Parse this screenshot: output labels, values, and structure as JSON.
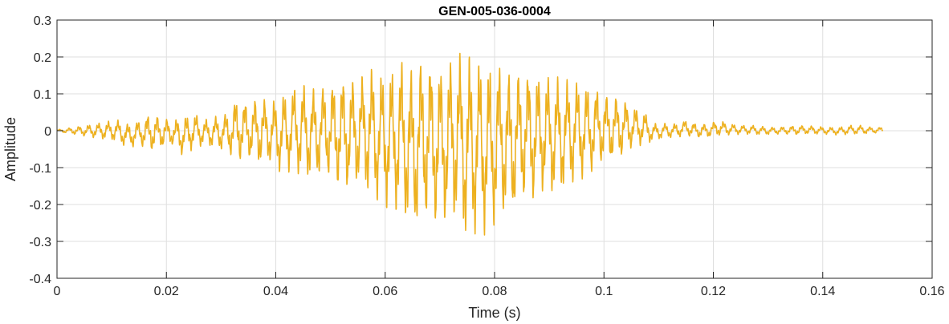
{
  "chart_data": {
    "type": "line",
    "title": "GEN-005-036-0004",
    "xlabel": "Time (s)",
    "ylabel": "Amplitude",
    "xlim": [
      0,
      0.16
    ],
    "ylim": [
      -0.4,
      0.3
    ],
    "xticks": [
      0,
      0.02,
      0.04,
      0.06,
      0.08,
      0.1,
      0.12,
      0.14,
      0.16
    ],
    "xtick_labels": [
      "0",
      "0.02",
      "0.04",
      "0.06",
      "0.08",
      "0.1",
      "0.12",
      "0.14",
      "0.16"
    ],
    "yticks": [
      -0.4,
      -0.3,
      -0.2,
      -0.1,
      0,
      0.1,
      0.2,
      0.3
    ],
    "ytick_labels": [
      "-0.4",
      "-0.3",
      "-0.2",
      "-0.1",
      "0",
      "0.1",
      "0.2",
      "0.3"
    ],
    "grid": true,
    "series": [
      {
        "color": "#EDB120",
        "x": [
          0,
          0.011,
          0.013,
          0.015,
          0.017,
          0.019,
          0.021,
          0.023,
          0.025,
          0.027,
          0.029,
          0.031,
          0.033,
          0.035,
          0.037,
          0.039,
          0.041,
          0.043,
          0.045,
          0.047,
          0.049,
          0.051,
          0.053,
          0.055,
          0.057,
          0.059,
          0.061,
          0.063,
          0.065,
          0.067,
          0.069,
          0.071,
          0.073,
          0.075,
          0.077,
          0.079,
          0.081,
          0.083,
          0.085,
          0.087,
          0.089,
          0.091,
          0.093,
          0.095,
          0.097,
          0.099,
          0.101,
          0.103,
          0.105,
          0.107,
          0.109,
          0.111,
          0.113,
          0.115,
          0.117,
          0.119,
          0.121,
          0.123,
          0.125,
          0.127,
          0.129,
          0.131,
          0.133,
          0.135,
          0.137,
          0.139,
          0.141,
          0.143,
          0.145,
          0.147,
          0.149,
          0.151
        ],
        "upper": [
          0.003,
          0.03,
          0.02,
          0.03,
          0.05,
          0.04,
          0.03,
          0.04,
          0.05,
          0.03,
          0.04,
          0.05,
          0.1,
          0.08,
          0.1,
          0.08,
          0.1,
          0.12,
          0.13,
          0.12,
          0.13,
          0.15,
          0.16,
          0.14,
          0.18,
          0.16,
          0.17,
          0.2,
          0.18,
          0.22,
          0.2,
          0.19,
          0.22,
          0.21,
          0.2,
          0.19,
          0.19,
          0.17,
          0.18,
          0.17,
          0.16,
          0.15,
          0.14,
          0.14,
          0.13,
          0.12,
          0.1,
          0.1,
          0.07,
          0.06,
          0.02,
          0.02,
          0.02,
          0.03,
          0.02,
          0.02,
          0.03,
          0.02,
          0.015,
          0.015,
          0.012,
          0.01,
          0.012,
          0.015,
          0.015,
          0.012,
          0.01,
          0.01,
          0.015,
          0.015,
          0.01,
          0.01
        ],
        "lower": [
          -0.003,
          -0.03,
          -0.05,
          -0.04,
          -0.06,
          -0.05,
          -0.04,
          -0.07,
          -0.05,
          -0.04,
          -0.05,
          -0.06,
          -0.09,
          -0.08,
          -0.1,
          -0.09,
          -0.12,
          -0.11,
          -0.13,
          -0.14,
          -0.12,
          -0.16,
          -0.17,
          -0.15,
          -0.18,
          -0.2,
          -0.22,
          -0.23,
          -0.3,
          -0.25,
          -0.27,
          -0.26,
          -0.25,
          -0.31,
          -0.28,
          -0.29,
          -0.24,
          -0.25,
          -0.2,
          -0.2,
          -0.17,
          -0.18,
          -0.16,
          -0.14,
          -0.13,
          -0.1,
          -0.09,
          -0.08,
          -0.05,
          -0.04,
          -0.03,
          -0.02,
          -0.02,
          -0.015,
          -0.02,
          -0.02,
          -0.015,
          -0.012,
          -0.01,
          -0.01,
          -0.012,
          -0.01,
          -0.01,
          -0.012,
          -0.01,
          -0.01,
          -0.01,
          -0.012,
          -0.01,
          -0.01,
          -0.008,
          -0.005
        ]
      }
    ]
  }
}
